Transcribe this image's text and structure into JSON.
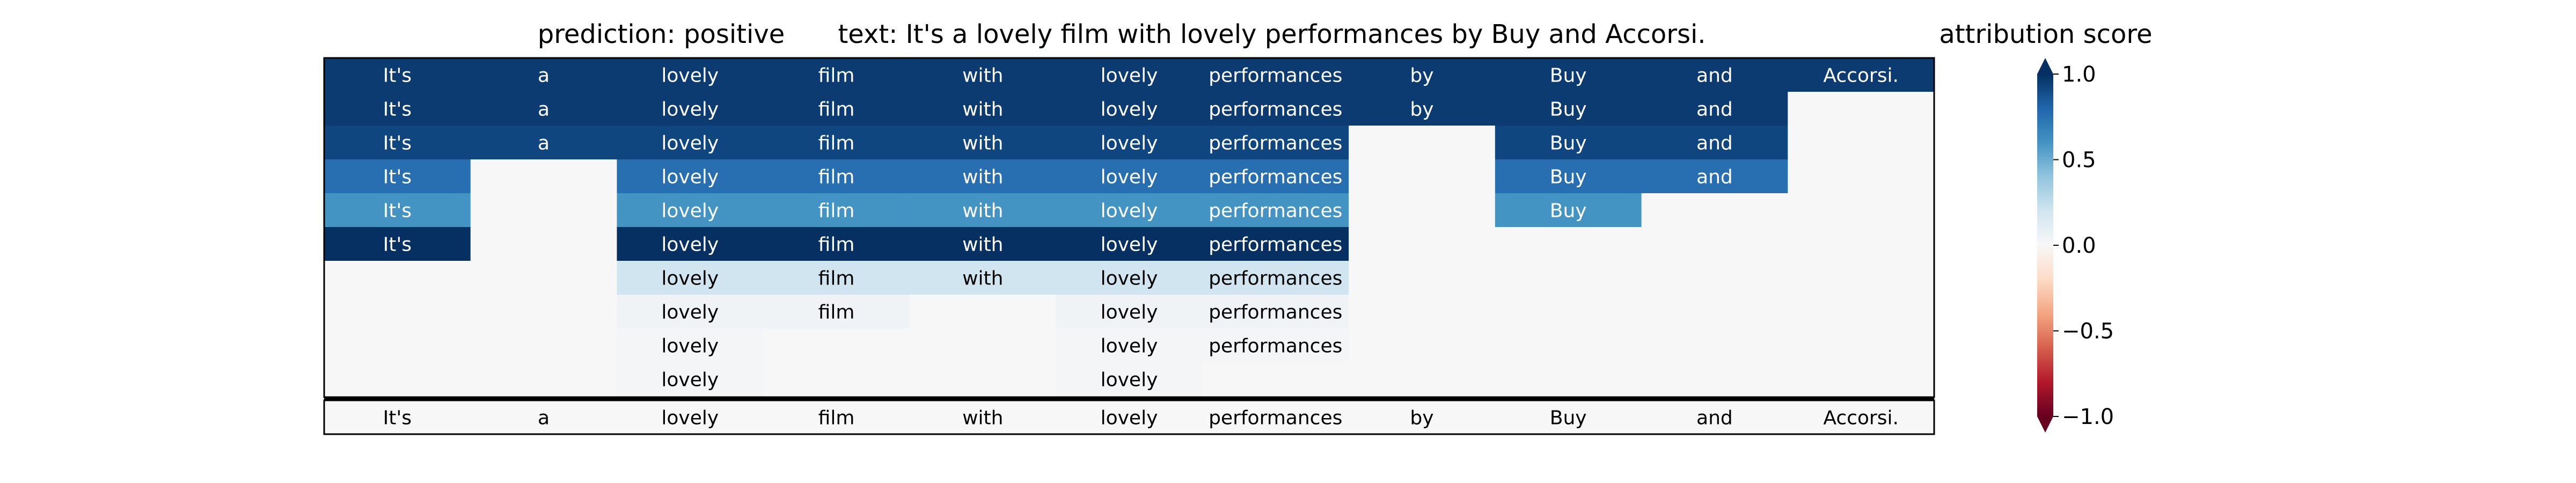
{
  "chart_data": {
    "type": "heatmap",
    "title_prediction": "prediction:  positive",
    "title_text": "text:  It's a lovely film with lovely performances by Buy and Accorsi.",
    "colorbar_label": "attribution score",
    "colorbar_range": [
      -1.0,
      1.0
    ],
    "colorbar_ticks": [
      "1.0",
      "0.5",
      "0.0",
      "−0.5",
      "−1.0"
    ],
    "colorbar_tick_values": [
      1.0,
      0.5,
      0.0,
      -0.5,
      -1.0
    ],
    "tokens": [
      "It's",
      "a",
      "lovely",
      "film",
      "with",
      "lovely",
      "performances",
      "by",
      "Buy",
      "and",
      "Accorsi."
    ],
    "rows": [
      [
        0.96,
        0.96,
        0.96,
        0.96,
        0.96,
        0.96,
        0.96,
        0.96,
        0.96,
        0.96,
        0.96
      ],
      [
        0.96,
        0.96,
        0.96,
        0.96,
        0.96,
        0.96,
        0.96,
        0.96,
        0.96,
        0.96,
        null
      ],
      [
        0.92,
        0.92,
        0.92,
        0.92,
        0.92,
        0.92,
        0.92,
        null,
        0.92,
        0.92,
        null
      ],
      [
        0.76,
        null,
        0.76,
        0.76,
        0.76,
        0.76,
        0.76,
        null,
        0.76,
        0.76,
        null
      ],
      [
        0.6,
        null,
        0.6,
        0.6,
        0.6,
        0.6,
        0.6,
        null,
        0.6,
        null,
        null
      ],
      [
        1.0,
        null,
        1.0,
        1.0,
        1.0,
        1.0,
        1.0,
        null,
        null,
        null,
        null
      ],
      [
        null,
        null,
        0.2,
        0.2,
        0.2,
        0.2,
        0.2,
        null,
        null,
        null,
        null
      ],
      [
        null,
        null,
        0.04,
        0.04,
        null,
        0.04,
        0.04,
        null,
        null,
        null,
        null
      ],
      [
        null,
        null,
        0.02,
        null,
        null,
        0.02,
        0.02,
        null,
        null,
        null,
        null
      ],
      [
        null,
        null,
        0.02,
        null,
        null,
        0.02,
        null,
        null,
        null,
        null,
        null
      ]
    ],
    "legend": "none",
    "grid": false
  }
}
